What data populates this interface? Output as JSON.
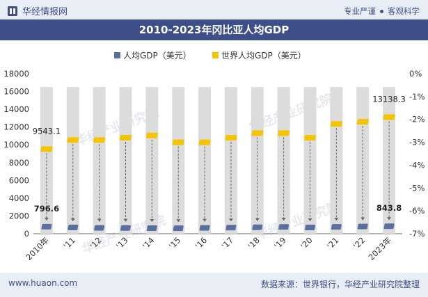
{
  "header": {
    "logo_text": "华经情报网",
    "slogan_left": "专业严谨",
    "slogan_right": "客观科学"
  },
  "title": "2010-2023年冈比亚人均GDP",
  "footer": {
    "site": "www.huaon.com",
    "source": "数据来源：世界银行，华经产业研究院整理"
  },
  "watermark": "华经产业研究院",
  "colors": {
    "brand": "#3d4f86",
    "series1": "#5b6f9e",
    "series2": "#f5c400",
    "column_bg": "#dcdcdc"
  },
  "chart_data": {
    "type": "bar",
    "categories": [
      "2010年",
      "'11",
      "'12",
      "'13",
      "'14",
      "'15",
      "'16",
      "'17",
      "'18",
      "'19",
      "'20",
      "'21",
      "'22",
      "2023年"
    ],
    "series": [
      {
        "name": "人均GDP（美元）",
        "axis": "left",
        "values": [
          796.6,
          700,
          660,
          650,
          630,
          620,
          660,
          680,
          720,
          760,
          700,
          770,
          810,
          843.8
        ]
      },
      {
        "name": "世界人均GDP（美元）",
        "axis": "right",
        "values_gdp": [
          9543.1,
          10500,
          10600,
          10800,
          10900,
          10200,
          10300,
          10800,
          11400,
          11400,
          10900,
          12300,
          12700,
          13138.3
        ],
        "ratio_percent": [
          -3.3,
          -2.9,
          -2.9,
          -2.8,
          -2.7,
          -3.0,
          -3.0,
          -2.8,
          -2.6,
          -2.6,
          -2.8,
          -2.2,
          -2.1,
          -1.9
        ]
      }
    ],
    "data_labels": [
      {
        "series": 0,
        "index": 0,
        "text": "796.6"
      },
      {
        "series": 0,
        "index": 13,
        "text": "843.8"
      },
      {
        "series": 1,
        "index": 0,
        "text": "9543.1"
      },
      {
        "series": 1,
        "index": 13,
        "text": "13138.3"
      }
    ],
    "y_left": {
      "min": 0,
      "max": 18000,
      "ticks": [
        "0",
        "2000",
        "4000",
        "6000",
        "8000",
        "10000",
        "12000",
        "14000",
        "16000",
        "18000"
      ]
    },
    "y_right": {
      "min": -7,
      "max": 0,
      "ticks": [
        "0%",
        "-1%",
        "-2%",
        "-3%",
        "-4%",
        "-5%",
        "-6%",
        "-7%"
      ]
    },
    "column_bg_value": 16500,
    "legend_position": "top-center"
  }
}
